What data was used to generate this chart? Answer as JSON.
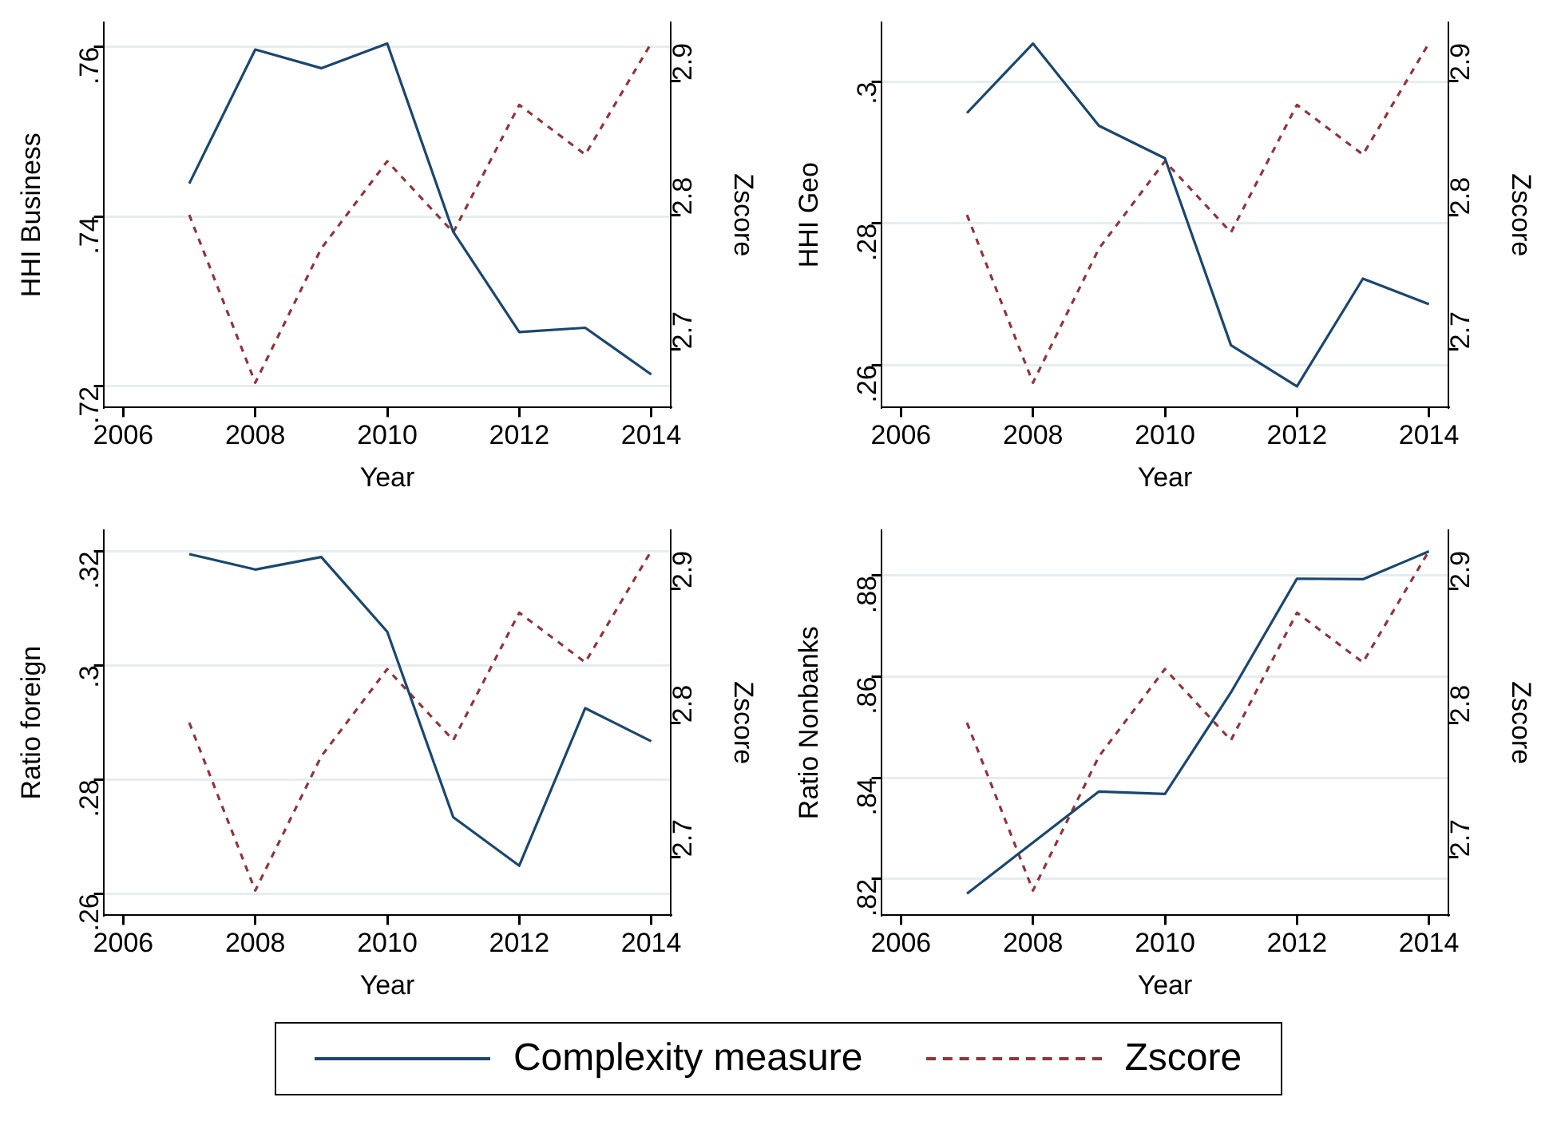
{
  "chart_data": [
    {
      "type": "line",
      "x": [
        2007,
        2008,
        2009,
        2010,
        2011,
        2012,
        2013,
        2014
      ],
      "xlabel": "Year",
      "ylabel": "HHI Business",
      "y2label": "Zscore",
      "xlim": [
        2005.7,
        2014.3
      ],
      "xticks": [
        2006,
        2008,
        2010,
        2012,
        2014
      ],
      "ylim": [
        0.7175,
        0.7629
      ],
      "yticks": [
        {
          "value": 0.72,
          "label": ".72"
        },
        {
          "value": 0.74,
          "label": ".74"
        },
        {
          "value": 0.76,
          "label": ".76"
        }
      ],
      "y2lim": [
        2.6565,
        2.9435
      ],
      "y2ticks": [
        2.7,
        2.8,
        2.9
      ],
      "grid": "y",
      "line_style": "solid",
      "legend": "bottom",
      "series": [
        {
          "name": "Complexity measure",
          "color": "#1a476f",
          "values": [
            0.7439,
            0.7597,
            0.7575,
            0.7604,
            0.7382,
            0.7264,
            0.7269,
            0.7214
          ]
        },
        {
          "name": "Zscore",
          "color": "#90353b",
          "axis": "y2",
          "line_style": "dashed",
          "values": [
            2.8,
            2.675,
            2.775,
            2.84,
            2.787,
            2.882,
            2.845,
            2.928
          ]
        }
      ]
    },
    {
      "type": "line",
      "x": [
        2007,
        2008,
        2009,
        2010,
        2011,
        2012,
        2013,
        2014
      ],
      "xlabel": "Year",
      "ylabel": "HHI Geo",
      "y2label": "Zscore",
      "xlim": [
        2005.7,
        2014.3
      ],
      "xticks": [
        2006,
        2008,
        2010,
        2012,
        2014
      ],
      "ylim": [
        0.254,
        0.3084
      ],
      "yticks": [
        {
          "value": 0.26,
          "label": ".26"
        },
        {
          "value": 0.28,
          "label": ".28"
        },
        {
          "value": 0.3,
          "label": ".3"
        }
      ],
      "y2lim": [
        2.6565,
        2.9435
      ],
      "y2ticks": [
        2.7,
        2.8,
        2.9
      ],
      "grid": "y",
      "line_style": "solid",
      "series": [
        {
          "color": "#1a476f",
          "values": [
            0.2956,
            0.3054,
            0.2938,
            0.2892,
            0.2628,
            0.257,
            0.2722,
            0.2686
          ]
        },
        {
          "color": "#90353b",
          "axis": "y2",
          "line_style": "dashed",
          "values": [
            2.8,
            2.675,
            2.775,
            2.84,
            2.787,
            2.882,
            2.845,
            2.928
          ]
        }
      ]
    },
    {
      "type": "line",
      "x": [
        2007,
        2008,
        2009,
        2010,
        2011,
        2012,
        2013,
        2014
      ],
      "xlabel": "Year",
      "ylabel": "Ratio foreign",
      "y2label": "Zscore",
      "xlim": [
        2005.7,
        2014.3
      ],
      "xticks": [
        2006,
        2008,
        2010,
        2012,
        2014
      ],
      "ylim": [
        0.2562,
        0.3237
      ],
      "yticks": [
        {
          "value": 0.26,
          "label": ".26"
        },
        {
          "value": 0.28,
          "label": ".28"
        },
        {
          "value": 0.3,
          "label": ".3"
        },
        {
          "value": 0.32,
          "label": ".32"
        }
      ],
      "y2lim": [
        2.6565,
        2.9435
      ],
      "y2ticks": [
        2.7,
        2.8,
        2.9
      ],
      "grid": "y",
      "line_style": "solid",
      "series": [
        {
          "color": "#1a476f",
          "values": [
            0.3195,
            0.3168,
            0.319,
            0.3059,
            0.2734,
            0.2649,
            0.2925,
            0.2867
          ]
        },
        {
          "color": "#90353b",
          "axis": "y2",
          "line_style": "dashed",
          "values": [
            2.8,
            2.675,
            2.775,
            2.84,
            2.787,
            2.882,
            2.845,
            2.928
          ]
        }
      ]
    },
    {
      "type": "line",
      "x": [
        2007,
        2008,
        2009,
        2010,
        2011,
        2012,
        2013,
        2014
      ],
      "xlabel": "Year",
      "ylabel": "Ratio Nonbanks",
      "y2label": "Zscore",
      "xlim": [
        2005.7,
        2014.3
      ],
      "xticks": [
        2006,
        2008,
        2010,
        2012,
        2014
      ],
      "ylim": [
        0.8128,
        0.889
      ],
      "yticks": [
        {
          "value": 0.82,
          "label": ".82"
        },
        {
          "value": 0.84,
          "label": ".84"
        },
        {
          "value": 0.86,
          "label": ".86"
        },
        {
          "value": 0.88,
          "label": ".88"
        }
      ],
      "y2lim": [
        2.6565,
        2.9435
      ],
      "y2ticks": [
        2.7,
        2.8,
        2.9
      ],
      "grid": "y",
      "line_style": "solid",
      "series": [
        {
          "color": "#1a476f",
          "values": [
            0.8171,
            0.8272,
            0.8373,
            0.8368,
            0.8569,
            0.8794,
            0.8793,
            0.8848
          ]
        },
        {
          "color": "#90353b",
          "axis": "y2",
          "line_style": "dashed",
          "values": [
            2.8,
            2.675,
            2.775,
            2.84,
            2.787,
            2.882,
            2.845,
            2.928
          ]
        }
      ]
    }
  ]
}
